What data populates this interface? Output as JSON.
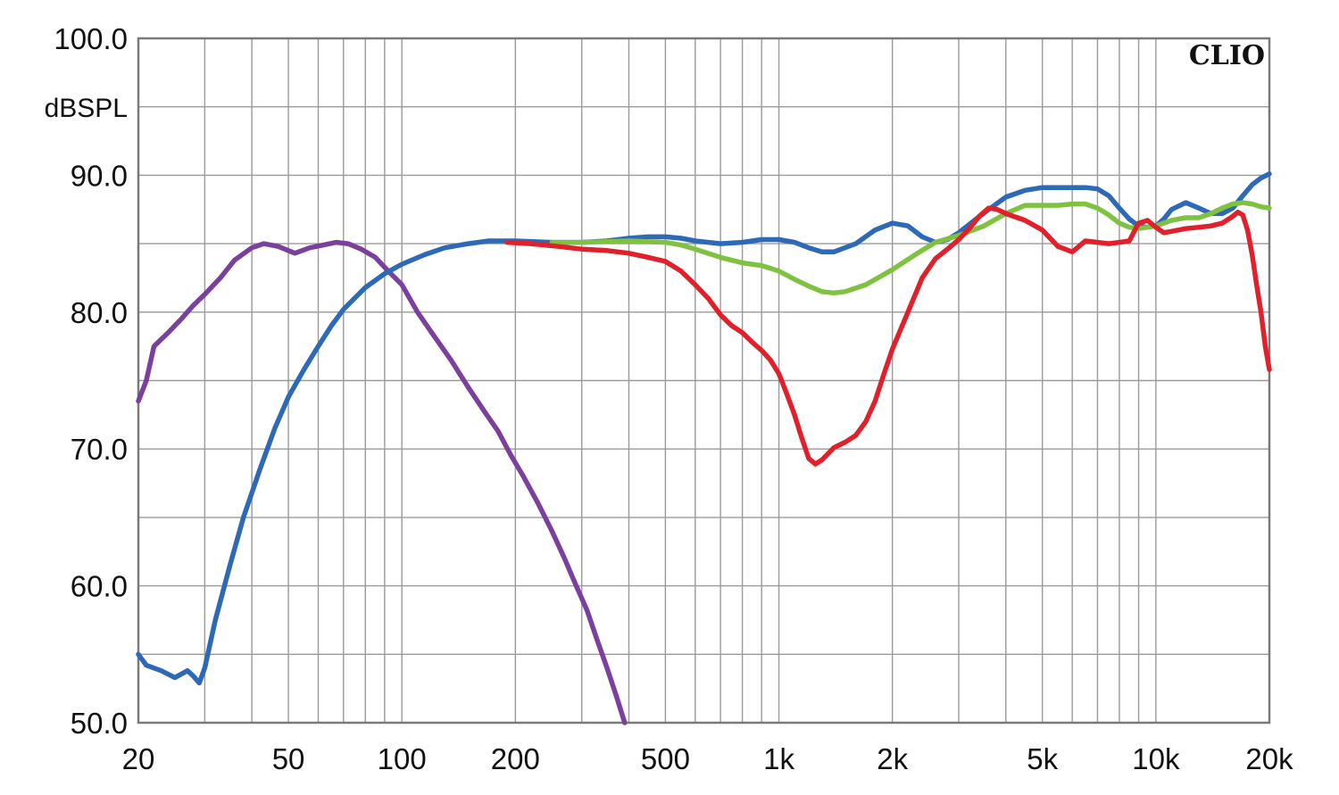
{
  "chart_data": {
    "type": "line",
    "title": "",
    "xlabel": "",
    "ylabel": "dBSPL",
    "brand": "CLIO",
    "x_scale": "log",
    "xlim": [
      20,
      20000
    ],
    "ylim": [
      50,
      100
    ],
    "grid": true,
    "legend": "none",
    "x_ticks": [
      {
        "value": 20,
        "label": "20"
      },
      {
        "value": 50,
        "label": "50"
      },
      {
        "value": 100,
        "label": "100"
      },
      {
        "value": 200,
        "label": "200"
      },
      {
        "value": 500,
        "label": "500"
      },
      {
        "value": 1000,
        "label": "1k"
      },
      {
        "value": 2000,
        "label": "2k"
      },
      {
        "value": 5000,
        "label": "5k"
      },
      {
        "value": 10000,
        "label": "10k"
      },
      {
        "value": 20000,
        "label": "20k"
      }
    ],
    "y_ticks": [
      {
        "value": 100,
        "label": "100.0"
      },
      {
        "value": 90,
        "label": "90.0"
      },
      {
        "value": 80,
        "label": "80.0"
      },
      {
        "value": 70,
        "label": "70.0"
      },
      {
        "value": 60,
        "label": "60.0"
      },
      {
        "value": 50,
        "label": "50.0"
      }
    ],
    "series": [
      {
        "color": "#7b3f9e",
        "points": [
          [
            20,
            73.5
          ],
          [
            21,
            75
          ],
          [
            22,
            77.5
          ],
          [
            24,
            78.5
          ],
          [
            26,
            79.5
          ],
          [
            28,
            80.5
          ],
          [
            30,
            81.3
          ],
          [
            33,
            82.5
          ],
          [
            36,
            83.8
          ],
          [
            40,
            84.7
          ],
          [
            43,
            85
          ],
          [
            47,
            84.8
          ],
          [
            52,
            84.3
          ],
          [
            57,
            84.7
          ],
          [
            62,
            84.9
          ],
          [
            67,
            85.1
          ],
          [
            72,
            85
          ],
          [
            78,
            84.6
          ],
          [
            85,
            84
          ],
          [
            92,
            83
          ],
          [
            100,
            82
          ],
          [
            110,
            80
          ],
          [
            120,
            78.5
          ],
          [
            135,
            76.5
          ],
          [
            150,
            74.5
          ],
          [
            165,
            72.8
          ],
          [
            180,
            71.3
          ],
          [
            195,
            69.5
          ],
          [
            210,
            68
          ],
          [
            230,
            66
          ],
          [
            250,
            64
          ],
          [
            270,
            62
          ],
          [
            290,
            60
          ],
          [
            310,
            58.2
          ],
          [
            330,
            56
          ],
          [
            350,
            54
          ],
          [
            370,
            52
          ],
          [
            390,
            50
          ]
        ]
      },
      {
        "color": "#2e69b8",
        "points": [
          [
            20,
            55
          ],
          [
            21,
            54.2
          ],
          [
            23,
            53.8
          ],
          [
            25,
            53.3
          ],
          [
            27,
            53.8
          ],
          [
            28,
            53.4
          ],
          [
            29,
            52.9
          ],
          [
            30,
            54
          ],
          [
            32,
            57.5
          ],
          [
            35,
            61.5
          ],
          [
            38,
            65
          ],
          [
            42,
            68.5
          ],
          [
            46,
            71.5
          ],
          [
            50,
            73.8
          ],
          [
            55,
            75.8
          ],
          [
            60,
            77.5
          ],
          [
            65,
            79
          ],
          [
            70,
            80.2
          ],
          [
            80,
            81.8
          ],
          [
            90,
            82.8
          ],
          [
            100,
            83.5
          ],
          [
            115,
            84.2
          ],
          [
            130,
            84.7
          ],
          [
            150,
            85
          ],
          [
            170,
            85.2
          ],
          [
            200,
            85.2
          ],
          [
            250,
            85.1
          ],
          [
            300,
            85.1
          ],
          [
            350,
            85.2
          ],
          [
            400,
            85.4
          ],
          [
            450,
            85.5
          ],
          [
            500,
            85.5
          ],
          [
            550,
            85.4
          ],
          [
            600,
            85.2
          ],
          [
            700,
            85
          ],
          [
            800,
            85.1
          ],
          [
            900,
            85.3
          ],
          [
            1000,
            85.3
          ],
          [
            1100,
            85.1
          ],
          [
            1200,
            84.7
          ],
          [
            1300,
            84.4
          ],
          [
            1400,
            84.4
          ],
          [
            1600,
            85
          ],
          [
            1800,
            86
          ],
          [
            2000,
            86.5
          ],
          [
            2200,
            86.3
          ],
          [
            2400,
            85.5
          ],
          [
            2600,
            85.1
          ],
          [
            2800,
            85.3
          ],
          [
            3000,
            85.8
          ],
          [
            3300,
            86.7
          ],
          [
            3600,
            87.5
          ],
          [
            4000,
            88.4
          ],
          [
            4500,
            88.9
          ],
          [
            5000,
            89.1
          ],
          [
            5500,
            89.1
          ],
          [
            6000,
            89.1
          ],
          [
            6500,
            89.1
          ],
          [
            7000,
            89
          ],
          [
            7500,
            88.5
          ],
          [
            8000,
            87.6
          ],
          [
            8500,
            86.8
          ],
          [
            9000,
            86.3
          ],
          [
            9500,
            86.2
          ],
          [
            10000,
            86.3
          ],
          [
            10500,
            86.8
          ],
          [
            11000,
            87.5
          ],
          [
            12000,
            88
          ],
          [
            13000,
            87.6
          ],
          [
            14000,
            87.2
          ],
          [
            15000,
            87.2
          ],
          [
            16000,
            87.6
          ],
          [
            17000,
            88.5
          ],
          [
            18000,
            89.3
          ],
          [
            19000,
            89.8
          ],
          [
            20000,
            90.1
          ]
        ]
      },
      {
        "color": "#7fc241",
        "points": [
          [
            250,
            85.1
          ],
          [
            300,
            85.1
          ],
          [
            400,
            85.2
          ],
          [
            500,
            85.1
          ],
          [
            550,
            84.9
          ],
          [
            600,
            84.6
          ],
          [
            700,
            84
          ],
          [
            800,
            83.6
          ],
          [
            900,
            83.4
          ],
          [
            1000,
            83
          ],
          [
            1100,
            82.4
          ],
          [
            1200,
            81.9
          ],
          [
            1300,
            81.5
          ],
          [
            1400,
            81.4
          ],
          [
            1500,
            81.5
          ],
          [
            1700,
            82
          ],
          [
            2000,
            83.1
          ],
          [
            2300,
            84.2
          ],
          [
            2600,
            85.1
          ],
          [
            3000,
            85.6
          ],
          [
            3500,
            86.3
          ],
          [
            4000,
            87.2
          ],
          [
            4500,
            87.8
          ],
          [
            5000,
            87.8
          ],
          [
            5500,
            87.8
          ],
          [
            6000,
            87.9
          ],
          [
            6500,
            87.9
          ],
          [
            7000,
            87.6
          ],
          [
            7500,
            87.1
          ],
          [
            8000,
            86.5
          ],
          [
            8500,
            86.2
          ],
          [
            9000,
            86.1
          ],
          [
            10000,
            86.3
          ],
          [
            11000,
            86.7
          ],
          [
            12000,
            86.9
          ],
          [
            13000,
            86.9
          ],
          [
            14000,
            87.2
          ],
          [
            15000,
            87.6
          ],
          [
            16000,
            87.9
          ],
          [
            17000,
            88
          ],
          [
            18000,
            87.9
          ],
          [
            19000,
            87.7
          ],
          [
            20000,
            87.6
          ]
        ]
      },
      {
        "color": "#e0202a",
        "points": [
          [
            190,
            85.1
          ],
          [
            220,
            85
          ],
          [
            260,
            84.8
          ],
          [
            300,
            84.6
          ],
          [
            350,
            84.5
          ],
          [
            400,
            84.3
          ],
          [
            450,
            84
          ],
          [
            500,
            83.7
          ],
          [
            550,
            83
          ],
          [
            600,
            82
          ],
          [
            650,
            81
          ],
          [
            700,
            79.8
          ],
          [
            750,
            79
          ],
          [
            800,
            78.5
          ],
          [
            850,
            77.8
          ],
          [
            900,
            77.2
          ],
          [
            950,
            76.5
          ],
          [
            1000,
            75.5
          ],
          [
            1050,
            74
          ],
          [
            1100,
            72.5
          ],
          [
            1150,
            70.8
          ],
          [
            1200,
            69.3
          ],
          [
            1250,
            68.9
          ],
          [
            1300,
            69.2
          ],
          [
            1400,
            70.1
          ],
          [
            1500,
            70.5
          ],
          [
            1600,
            71
          ],
          [
            1700,
            72
          ],
          [
            1800,
            73.5
          ],
          [
            1900,
            75.5
          ],
          [
            2000,
            77.3
          ],
          [
            2200,
            80
          ],
          [
            2400,
            82.5
          ],
          [
            2600,
            83.9
          ],
          [
            2800,
            84.6
          ],
          [
            3000,
            85.3
          ],
          [
            3200,
            86.1
          ],
          [
            3400,
            87
          ],
          [
            3600,
            87.6
          ],
          [
            3800,
            87.5
          ],
          [
            4000,
            87.2
          ],
          [
            4500,
            86.7
          ],
          [
            5000,
            86
          ],
          [
            5500,
            84.8
          ],
          [
            6000,
            84.4
          ],
          [
            6500,
            85.2
          ],
          [
            7000,
            85.1
          ],
          [
            7500,
            85
          ],
          [
            8000,
            85.1
          ],
          [
            8500,
            85.2
          ],
          [
            9000,
            86.5
          ],
          [
            9500,
            86.7
          ],
          [
            10000,
            86.2
          ],
          [
            10500,
            85.8
          ],
          [
            11000,
            85.9
          ],
          [
            12000,
            86.1
          ],
          [
            13000,
            86.2
          ],
          [
            14000,
            86.3
          ],
          [
            15000,
            86.5
          ],
          [
            16000,
            87
          ],
          [
            16500,
            87.3
          ],
          [
            17000,
            87.1
          ],
          [
            17500,
            86
          ],
          [
            18000,
            84.2
          ],
          [
            18500,
            82
          ],
          [
            19000,
            80
          ],
          [
            19500,
            77.5
          ],
          [
            20000,
            75.8
          ]
        ]
      }
    ]
  }
}
